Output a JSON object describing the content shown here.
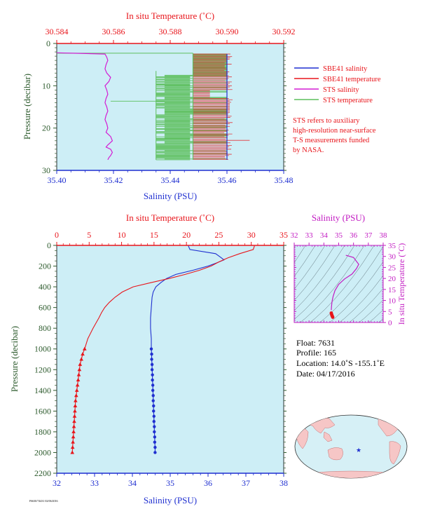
{
  "colors": {
    "plot_bg": "#cdeef6",
    "salinity": "#1f2fd0",
    "temperature": "#e8151b",
    "sts_salinity": "#d41bd4",
    "sts_temperature": "#5dbf5d",
    "pressure_axis": "#2c5a2c",
    "salinity_axis": "#1f2fd0",
    "temperature_axis": "#e8151b",
    "ts_axis": "#c21bc2",
    "note": "#e8151b"
  },
  "chart_data": [
    {
      "id": "near_surface",
      "type": "line",
      "top_axis_label": "In situ Temperature (˚C)",
      "bottom_axis_label": "Salinity (PSU)",
      "left_axis_label": "Pressure (decibar)",
      "temperature_ticks": [
        "30.584",
        "30.586",
        "30.588",
        "30.590",
        "30.592"
      ],
      "salinity_ticks": [
        "35.40",
        "35.42",
        "35.44",
        "35.46",
        "35.48"
      ],
      "pressure_ticks": [
        "0",
        "10",
        "20",
        "30"
      ],
      "xlim_temperature": [
        30.584,
        30.592
      ],
      "xlim_salinity": [
        35.4,
        35.48
      ],
      "ylim_pressure": [
        0,
        30
      ],
      "legend": [
        {
          "label": "SBE41 salinity",
          "color_key": "salinity"
        },
        {
          "label": "SBE41 temperature",
          "color_key": "temperature"
        },
        {
          "label": "STS salinity",
          "color_key": "sts_salinity"
        },
        {
          "label": "STS temperature",
          "color_key": "sts_temperature"
        }
      ],
      "note_lines": [
        "STS refers to auxiliary",
        "high-resolution near-surface",
        "T-S measurements funded",
        "by NASA."
      ],
      "series": [
        {
          "name": "SBE41 salinity",
          "color_key": "salinity",
          "x_units": "salinity",
          "x": [
            35.46,
            35.46,
            35.46,
            35.46,
            35.46,
            35.46,
            35.46
          ],
          "y": [
            2.5,
            5,
            10,
            15,
            20,
            25,
            27.5
          ]
        },
        {
          "name": "STS salinity",
          "color_key": "sts_salinity",
          "x_units": "salinity",
          "x": [
            35.4,
            35.417,
            35.418,
            35.417,
            35.419,
            35.417,
            35.418,
            35.417,
            35.418,
            35.417,
            35.418,
            35.419,
            35.418,
            35.419,
            35.419,
            35.418
          ],
          "y": [
            2.2,
            2.5,
            4,
            6,
            8,
            10,
            12,
            14,
            16,
            18,
            20,
            22,
            24,
            25,
            26.5,
            27.5
          ]
        }
      ],
      "bands": [
        {
          "name": "SBE41 temperature",
          "color_key": "temperature",
          "y0": 2.5,
          "y1": 27.5,
          "x_min": 30.5887,
          "x_max": 30.5908
        },
        {
          "name": "STS temperature",
          "color_key": "sts_temperature",
          "y0": 2.3,
          "y1": 27.5,
          "x_min": 30.5875,
          "x_max": 30.59
        }
      ]
    },
    {
      "id": "full_profile",
      "type": "line",
      "top_axis_label": "In situ Temperature (˚C)",
      "bottom_axis_label": "Salinity (PSU)",
      "left_axis_label": "Pressure (decibar)",
      "temperature_ticks": [
        "0",
        "5",
        "10",
        "15",
        "20",
        "25",
        "30",
        "35"
      ],
      "salinity_ticks": [
        "32",
        "33",
        "34",
        "35",
        "36",
        "37",
        "38"
      ],
      "pressure_ticks": [
        "0",
        "200",
        "400",
        "600",
        "800",
        "1000",
        "1200",
        "1400",
        "1600",
        "1800",
        "2000",
        "2200"
      ],
      "xlim_temperature": [
        0,
        35
      ],
      "xlim_salinity": [
        32,
        38
      ],
      "ylim_pressure": [
        0,
        2200
      ],
      "series": [
        {
          "name": "Salinity",
          "color_key": "salinity",
          "x_units": "salinity",
          "pressure": [
            5,
            40,
            80,
            120,
            140,
            170,
            200,
            240,
            280,
            320,
            360,
            400,
            450,
            500,
            600,
            700,
            800,
            900,
            1000
          ],
          "values": [
            35.48,
            35.52,
            36.2,
            36.35,
            36.42,
            36.22,
            36.0,
            35.6,
            35.15,
            34.9,
            34.75,
            34.62,
            34.55,
            34.52,
            34.5,
            34.48,
            34.48,
            34.5,
            34.5
          ]
        },
        {
          "name": "Temperature",
          "color_key": "temperature",
          "x_units": "temperature",
          "pressure": [
            5,
            40,
            80,
            120,
            160,
            200,
            240,
            280,
            320,
            360,
            400,
            450,
            500,
            550,
            600,
            650,
            700,
            800,
            900,
            1000
          ],
          "values": [
            30.5,
            30.3,
            28.2,
            26.4,
            25.0,
            23.8,
            22.0,
            19.8,
            17.3,
            14.5,
            11.8,
            10.1,
            9.0,
            8.1,
            7.4,
            6.9,
            6.5,
            5.6,
            4.8,
            4.3
          ]
        }
      ],
      "deep_series": [
        {
          "name": "Salinity",
          "color_key": "salinity",
          "marker": "circle",
          "pressure": [
            1000,
            1050,
            1100,
            1150,
            1200,
            1250,
            1300,
            1350,
            1400,
            1450,
            1500,
            1550,
            1600,
            1650,
            1700,
            1750,
            1800,
            1850,
            1900,
            1950,
            2000
          ],
          "values": [
            34.5,
            34.51,
            34.51,
            34.52,
            34.52,
            34.53,
            34.53,
            34.54,
            34.54,
            34.55,
            34.55,
            34.56,
            34.56,
            34.57,
            34.57,
            34.58,
            34.58,
            34.59,
            34.59,
            34.6,
            34.6
          ]
        },
        {
          "name": "Temperature",
          "color_key": "temperature",
          "marker": "triangle",
          "pressure": [
            1000,
            1050,
            1100,
            1150,
            1200,
            1250,
            1300,
            1350,
            1400,
            1450,
            1500,
            1550,
            1600,
            1650,
            1700,
            1750,
            1800,
            1850,
            1900,
            1950,
            2000
          ],
          "values": [
            4.3,
            4.0,
            3.8,
            3.6,
            3.5,
            3.4,
            3.3,
            3.2,
            3.1,
            3.0,
            2.9,
            2.85,
            2.8,
            2.75,
            2.7,
            2.65,
            2.6,
            2.55,
            2.5,
            2.45,
            2.4
          ]
        }
      ]
    },
    {
      "id": "ts_diagram",
      "type": "line",
      "top_axis_label": "Salinity (PSU)",
      "right_axis_label": "In situ Temperature (˚C)",
      "salinity_ticks": [
        "32",
        "33",
        "34",
        "35",
        "36",
        "37",
        "38"
      ],
      "temperature_ticks": [
        "0",
        "5",
        "10",
        "15",
        "20",
        "25",
        "30",
        "35"
      ],
      "xlim_salinity": [
        32,
        38
      ],
      "ylim_temperature": [
        0,
        35
      ],
      "series": [
        {
          "name": "T-S",
          "color_key": "ts_axis",
          "salinity": [
            35.48,
            36.0,
            36.35,
            36.2,
            35.9,
            35.4,
            35.0,
            34.75,
            34.62,
            34.55,
            34.52,
            34.5
          ],
          "temperature": [
            30.5,
            29.5,
            26.4,
            24.5,
            22.0,
            19.8,
            17.3,
            14.5,
            11.8,
            9.5,
            7.4,
            5.6
          ]
        },
        {
          "name": "T-S deep",
          "color_key": "temperature",
          "salinity": [
            34.5,
            34.52,
            34.54,
            34.56,
            34.58,
            34.6
          ],
          "temperature": [
            4.3,
            3.8,
            3.3,
            3.0,
            2.7,
            2.4
          ]
        }
      ]
    }
  ],
  "info": {
    "float": "Float:  7631",
    "profile": "Profile:  165",
    "location": "Location:  14.0˚S  -155.1˚E",
    "date": "Date:  04/17/2016"
  },
  "footer_tiny": "F6630/74431  02/06/2016"
}
